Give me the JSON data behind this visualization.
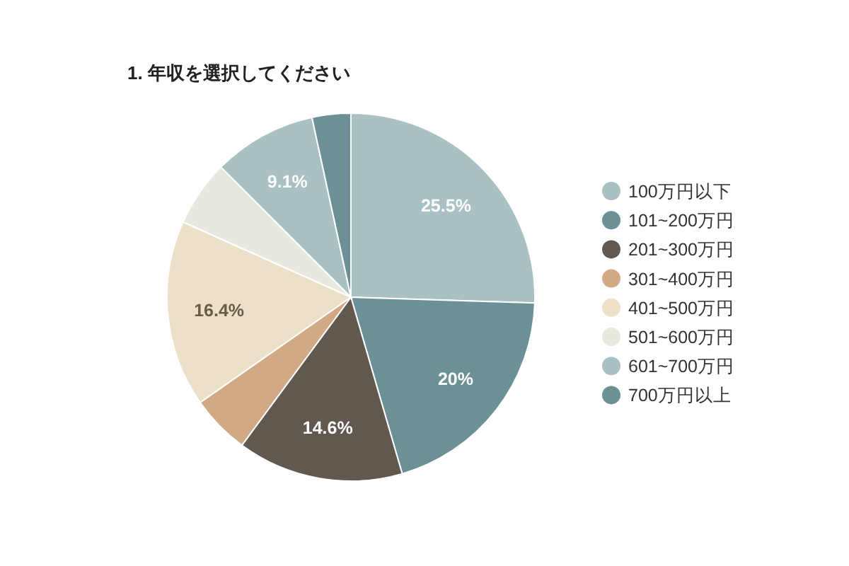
{
  "chart_data": {
    "type": "pie",
    "title": "1. 年収を選択してください",
    "categories": [
      "100万円以下",
      "101~200万円",
      "201~300万円",
      "301~400万円",
      "401~500万円",
      "501~600万円",
      "601~700万円",
      "700万円以上"
    ],
    "values": [
      25.5,
      20,
      14.6,
      5.2,
      16.4,
      5.8,
      9.1,
      3.4
    ],
    "value_labels": [
      "25.5%",
      "20%",
      "14.6%",
      null,
      "16.4%",
      null,
      "9.1%",
      null
    ],
    "colors": [
      "#a9c1c2",
      "#6b9196",
      "#615850",
      "#d1a984",
      "#ede0c8",
      "#e7e9df",
      "#a9c1c2",
      "#6b9196"
    ],
    "legend": "right"
  }
}
